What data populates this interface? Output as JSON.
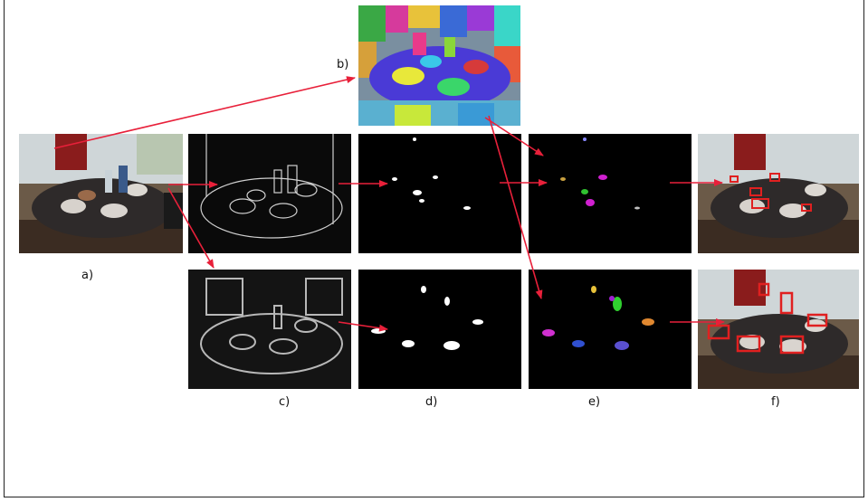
{
  "labels": {
    "a": "a)",
    "b": "b)",
    "c": "c)",
    "d": "d)",
    "e": "e)",
    "f": "f)"
  },
  "colors": {
    "arrow": "#e8203a",
    "black": "#000000",
    "mask": "#ffffff",
    "box": "#e02020"
  }
}
